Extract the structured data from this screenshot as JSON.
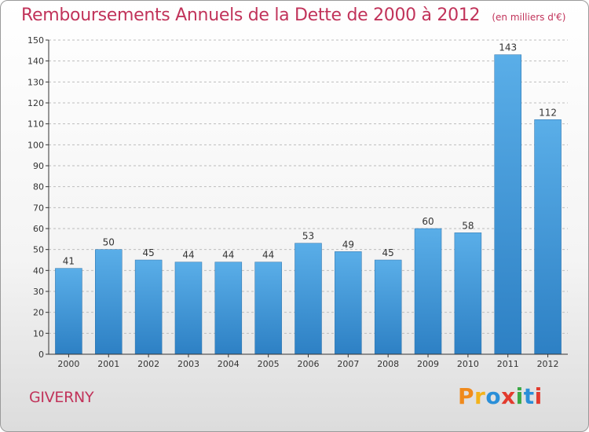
{
  "title": "Remboursements Annuels de la Dette de 2000 à 2012",
  "subtitle": "(en milliers d'€)",
  "commune": "GIVERNY",
  "logo": {
    "text": "Proxiti",
    "colors": [
      "#f08a1c",
      "#f3b21a",
      "#2a8fd8",
      "#e23b2e",
      "#3aa845",
      "#2a8fd8",
      "#e23b2e"
    ]
  },
  "colors": {
    "title": "#c1335a",
    "bar_top": "#5aaee8",
    "bar_bottom": "#2d80c4",
    "grid": "#bdbdbd",
    "axis": "#333333"
  },
  "chart_data": {
    "type": "bar",
    "title": "Remboursements Annuels de la Dette de 2000 à 2012",
    "xlabel": "",
    "ylabel": "en milliers d'€",
    "ylim": [
      0,
      150
    ],
    "yticks": [
      0,
      10,
      20,
      30,
      40,
      50,
      60,
      70,
      80,
      90,
      100,
      110,
      120,
      130,
      140,
      150
    ],
    "grid": true,
    "categories": [
      "2000",
      "2001",
      "2002",
      "2003",
      "2004",
      "2005",
      "2006",
      "2007",
      "2008",
      "2009",
      "2010",
      "2011",
      "2012"
    ],
    "values": [
      41,
      50,
      45,
      44,
      44,
      44,
      53,
      49,
      45,
      60,
      58,
      143,
      112
    ]
  }
}
